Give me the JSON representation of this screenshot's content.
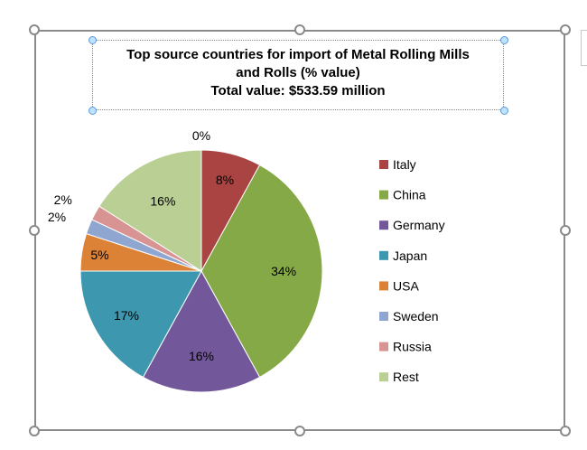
{
  "chart_data": {
    "type": "pie",
    "title_lines": [
      "Top source countries for import of Metal Rolling Mills",
      "and Rolls (% value)",
      "Total value: $533.59 million"
    ],
    "categories": [
      "Italy",
      "China",
      "Germany",
      "Japan",
      "USA",
      "Sweden",
      "Russia",
      "Rest",
      "(unlabeled)"
    ],
    "values": [
      8,
      34,
      16,
      17,
      5,
      2,
      2,
      16,
      0
    ],
    "data_labels": [
      "8%",
      "34%",
      "16%",
      "17%",
      "5%",
      "2%",
      "2%",
      "16%",
      "0%"
    ],
    "colors": [
      "#a94442",
      "#86a948",
      "#72589a",
      "#3d97ae",
      "#dc8236",
      "#8fa6d1",
      "#d89393",
      "#b9cf94",
      "#9e9e9e"
    ],
    "legend": [
      "Italy",
      "China",
      "Germany",
      "Japan",
      "USA",
      "Sweden",
      "Russia",
      "Rest"
    ],
    "legend_position": "right"
  }
}
